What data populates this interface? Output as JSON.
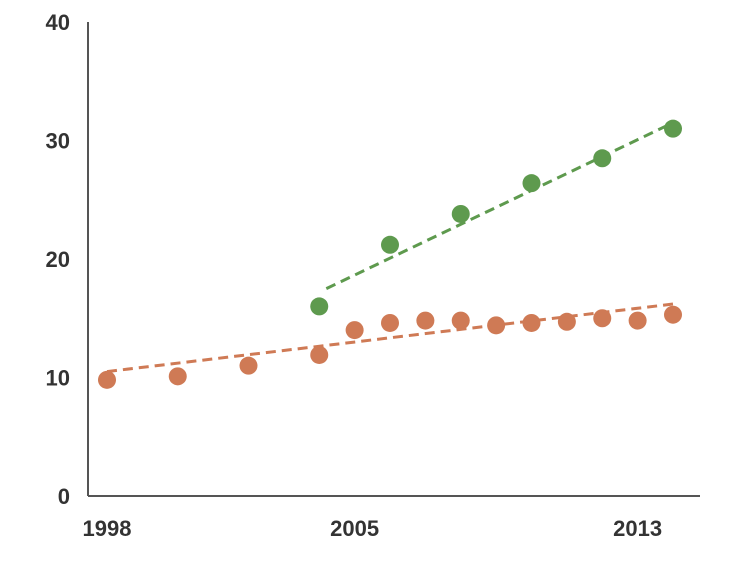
{
  "chart_data": {
    "type": "scatter",
    "title": "",
    "xlabel": "",
    "ylabel": "",
    "xlim": [
      1998,
      2014
    ],
    "ylim": [
      0,
      40
    ],
    "y_ticks": [
      "0",
      "10",
      "20",
      "30",
      "40"
    ],
    "x_ticks": [
      {
        "value": 1998,
        "label": "1998"
      },
      {
        "value": 2005,
        "label": "2005"
      },
      {
        "value": 2013,
        "label": "2013"
      }
    ],
    "grid": false,
    "legend": "none",
    "series": [
      {
        "color": "#cf7a55",
        "x": [
          1998,
          2000,
          2002,
          2004,
          2005,
          2006,
          2007,
          2008,
          2009,
          2010,
          2011,
          2012,
          2013,
          2014
        ],
        "y": [
          9.8,
          10.1,
          11.0,
          11.9,
          14.0,
          14.6,
          14.8,
          14.8,
          14.4,
          14.6,
          14.7,
          15.0,
          14.8,
          15.3
        ],
        "trend": {
          "x": [
            1998,
            2014
          ],
          "y": [
            10.5,
            16.2
          ],
          "style": "dashed"
        }
      },
      {
        "color": "#5e9a4e",
        "x": [
          2004,
          2006,
          2008,
          2010,
          2012,
          2014
        ],
        "y": [
          16.0,
          21.2,
          23.8,
          26.4,
          28.5,
          31.0
        ],
        "trend": {
          "x": [
            2004.2,
            2014
          ],
          "y": [
            17.5,
            31.5
          ],
          "style": "dashed"
        }
      }
    ]
  }
}
